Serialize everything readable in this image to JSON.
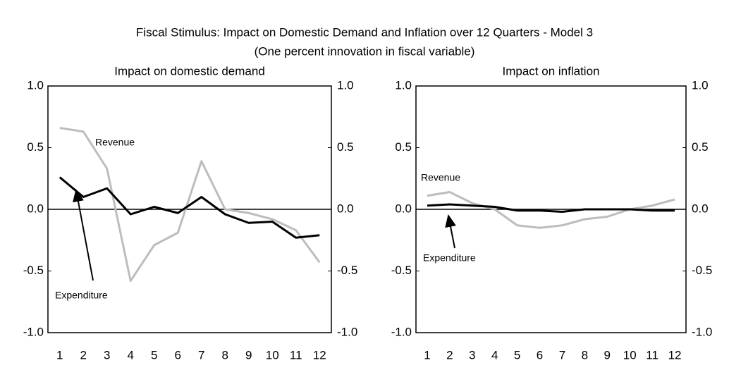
{
  "title": "Fiscal Stimulus: Impact on Domestic Demand and Inflation over 12 Quarters - Model 3",
  "subtitle": "(One percent innovation in fiscal variable)",
  "chart_data": [
    {
      "type": "line",
      "title": "Impact on domestic demand",
      "categories": [
        "1",
        "2",
        "3",
        "4",
        "5",
        "6",
        "7",
        "8",
        "9",
        "10",
        "11",
        "12"
      ],
      "series": [
        {
          "name": "Revenue",
          "color": "#bdbdbd",
          "values": [
            0.66,
            0.63,
            0.33,
            -0.58,
            -0.29,
            -0.19,
            0.39,
            0.0,
            -0.03,
            -0.08,
            -0.17,
            -0.43
          ]
        },
        {
          "name": "Expenditure",
          "color": "#000000",
          "values": [
            0.26,
            0.1,
            0.17,
            -0.04,
            0.02,
            -0.03,
            0.1,
            -0.04,
            -0.11,
            -0.1,
            -0.23,
            -0.21
          ]
        }
      ],
      "annotations": [
        "Revenue",
        "Expenditure"
      ],
      "ylim": [
        -1,
        1
      ],
      "yticks": [
        {
          "value": -1,
          "label": "-1.0"
        },
        {
          "value": -0.5,
          "label": "-0.5"
        },
        {
          "value": 0,
          "label": "0.0"
        },
        {
          "value": 0.5,
          "label": "0.5"
        },
        {
          "value": 1,
          "label": "1.0"
        }
      ],
      "y2lim": [
        -1,
        1
      ],
      "y2ticks": [
        {
          "value": -1,
          "label": "-1.0"
        },
        {
          "value": -0.5,
          "label": "-0.5"
        },
        {
          "value": 0,
          "label": "0.0"
        },
        {
          "value": 0.5,
          "label": "0.5"
        },
        {
          "value": 1,
          "label": "1.0"
        }
      ]
    },
    {
      "type": "line",
      "title": "Impact on inflation",
      "categories": [
        "1",
        "2",
        "3",
        "4",
        "5",
        "6",
        "7",
        "8",
        "9",
        "10",
        "11",
        "12"
      ],
      "series": [
        {
          "name": "Revenue",
          "color": "#bdbdbd",
          "values": [
            0.11,
            0.14,
            0.05,
            0.0,
            -0.13,
            -0.15,
            -0.13,
            -0.08,
            -0.06,
            0.0,
            0.03,
            0.08
          ]
        },
        {
          "name": "Expenditure",
          "color": "#000000",
          "values": [
            0.03,
            0.04,
            0.03,
            0.02,
            -0.01,
            -0.01,
            -0.02,
            0.0,
            0.0,
            0.0,
            -0.01,
            -0.01
          ]
        }
      ],
      "annotations": [
        "Revenue",
        "Expenditure"
      ],
      "ylim": [
        -1,
        1
      ],
      "yticks": [
        {
          "value": -1,
          "label": "-1.0"
        },
        {
          "value": -0.5,
          "label": "-0.5"
        },
        {
          "value": 0,
          "label": "0.0"
        },
        {
          "value": 0.5,
          "label": "0.5"
        },
        {
          "value": 1,
          "label": "1.0"
        }
      ],
      "y2lim": [
        -1,
        1
      ],
      "y2ticks": [
        {
          "value": -1,
          "label": "-1.0"
        },
        {
          "value": -0.5,
          "label": "-0.5"
        },
        {
          "value": 0,
          "label": "0.0"
        },
        {
          "value": 0.5,
          "label": "0.5"
        },
        {
          "value": 1,
          "label": "1.0"
        }
      ]
    }
  ]
}
